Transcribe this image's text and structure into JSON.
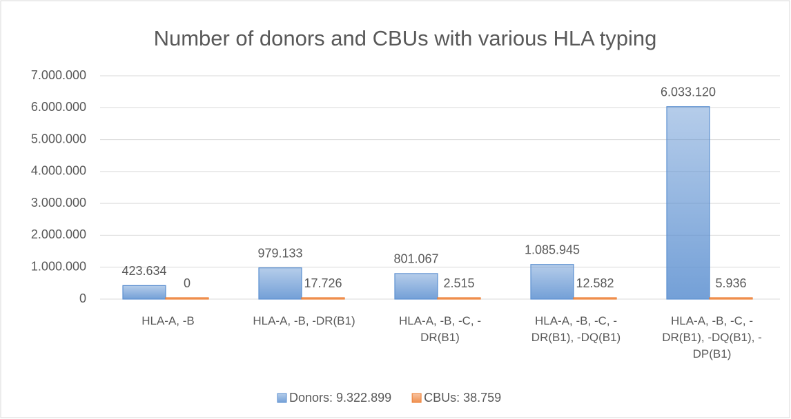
{
  "chart_data": {
    "type": "bar",
    "title": "Number of donors and CBUs with various HLA typing",
    "categories": [
      "HLA-A, -B",
      "HLA-A, -B, -DR(B1)",
      "HLA-A, -B, -C, -DR(B1)",
      "HLA-A, -B, -C, -DR(B1), -DQ(B1)",
      "HLA-A, -B, -C, -DR(B1), -DQ(B1), -DP(B1)"
    ],
    "series": [
      {
        "name": "Donors: 9.322.899",
        "color": "#5b8fd0",
        "values": [
          423634,
          979133,
          801067,
          1085945,
          6033120
        ],
        "value_labels": [
          "423.634",
          "979.133",
          "801.067",
          "1.085.945",
          "6.033.120"
        ]
      },
      {
        "name": "CBUs: 38.759",
        "color": "#ed7d31",
        "values": [
          0,
          17726,
          2515,
          12582,
          5936
        ],
        "value_labels": [
          "0",
          "17.726",
          "2.515",
          "12.582",
          "5.936"
        ]
      }
    ],
    "ylim": [
      0,
      7000000
    ],
    "yticks": [
      0,
      {
        "value": 1000000,
        "label": "1.000.000"
      },
      {
        "value": 2000000,
        "label": "2.000.000"
      },
      {
        "value": 3000000,
        "label": "3.000.000"
      },
      {
        "value": 4000000,
        "label": "4.000.000"
      },
      {
        "value": 5000000,
        "label": "5.000.000"
      },
      {
        "value": 6000000,
        "label": "6.000.000"
      },
      {
        "value": 7000000,
        "label": "7.000.000"
      }
    ],
    "grid": true,
    "legend": "bottom"
  }
}
